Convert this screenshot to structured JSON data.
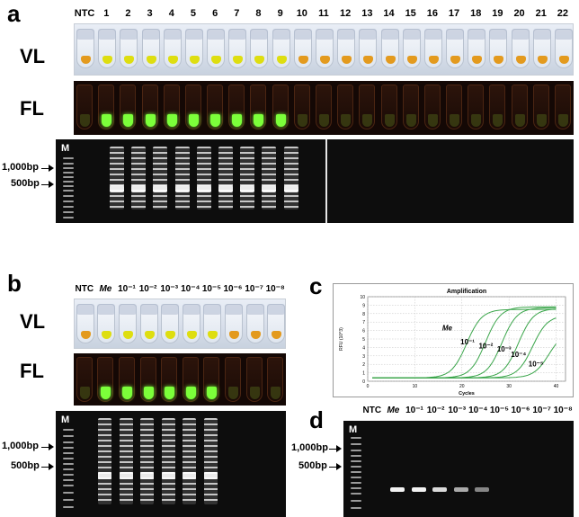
{
  "panel_a": {
    "letter": "a",
    "lanes": [
      "NTC",
      "1",
      "2",
      "3",
      "4",
      "5",
      "6",
      "7",
      "8",
      "9",
      "10",
      "11",
      "12",
      "13",
      "14",
      "15",
      "16",
      "17",
      "18",
      "19",
      "20",
      "21",
      "22"
    ],
    "vl_label": "VL",
    "fl_label": "FL",
    "gel_marker": "M",
    "bp_labels": [
      "1,000bp",
      "500bp"
    ]
  },
  "panel_b": {
    "letter": "b",
    "lanes": [
      "NTC",
      "Me",
      "10⁻¹",
      "10⁻²",
      "10⁻³",
      "10⁻⁴",
      "10⁻⁵",
      "10⁻⁶",
      "10⁻⁷",
      "10⁻⁸"
    ],
    "vl_label": "VL",
    "fl_label": "FL",
    "gel_marker": "M",
    "bp_labels": [
      "1,000bp",
      "500bp"
    ]
  },
  "panel_c": {
    "letter": "c",
    "chart_data": {
      "type": "line",
      "title": "Amplification",
      "xlabel": "Cycles",
      "ylabel": "RFU (10^3)",
      "xlim": [
        0,
        42
      ],
      "ylim": [
        0,
        10
      ],
      "xticks": [
        "0",
        "10",
        "20",
        "30",
        "40"
      ],
      "yticks": [
        "0",
        "1",
        "2",
        "3",
        "4",
        "5",
        "6",
        "7",
        "8",
        "9",
        "10"
      ],
      "grid": true,
      "color": "#3aa54a",
      "baseline": 0.4,
      "series": [
        {
          "name": "Me",
          "midpoint": 21,
          "plateau": 8.5
        },
        {
          "name": "10⁻¹",
          "midpoint": 25,
          "plateau": 8.8
        },
        {
          "name": "10⁻²",
          "midpoint": 28.5,
          "plateau": 8.7
        },
        {
          "name": "10⁻³",
          "midpoint": 32,
          "plateau": 8.6
        },
        {
          "name": "10⁻⁴",
          "midpoint": 35,
          "plateau": 7.8
        },
        {
          "name": "10⁻⁵",
          "midpoint": 38.5,
          "plateau": 6.0
        }
      ]
    }
  },
  "panel_d": {
    "letter": "d",
    "lanes": [
      "NTC",
      "Me",
      "10⁻¹",
      "10⁻²",
      "10⁻³",
      "10⁻⁴",
      "10⁻⁵",
      "10⁻⁶",
      "10⁻⁷",
      "10⁻⁸"
    ],
    "gel_marker": "M",
    "bp_labels": [
      "1,000bp",
      "500bp"
    ]
  },
  "colors": {
    "vl_positive": "#dede10",
    "vl_negative": "#e39a1e",
    "fl_positive": "#7cff3a",
    "fl_negative": "#4a5a18"
  }
}
